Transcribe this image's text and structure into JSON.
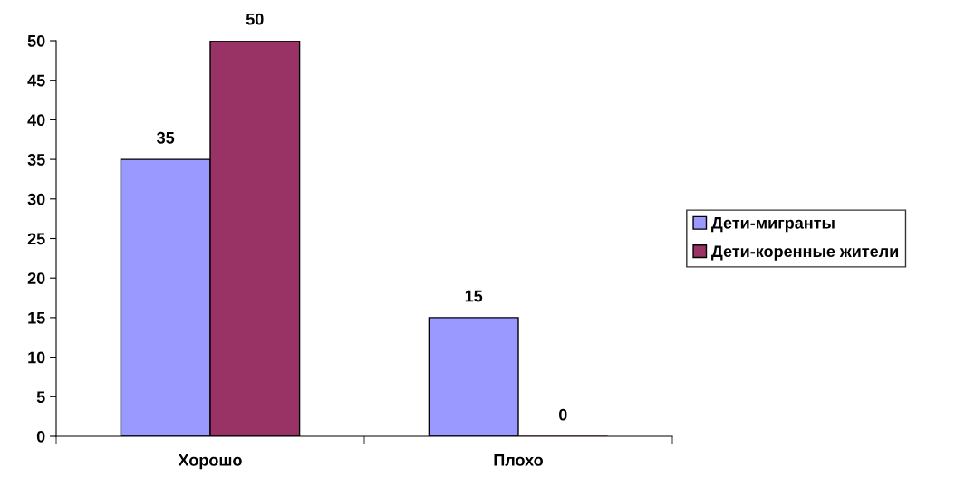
{
  "chart_data": {
    "type": "bar",
    "categories": [
      "Хорошо",
      "Плохо"
    ],
    "series": [
      {
        "name": "Дети-мигранты",
        "color": "#9999ff",
        "values": [
          35,
          15
        ]
      },
      {
        "name": "Дети-коренные жители",
        "color": "#993366",
        "values": [
          50,
          0
        ]
      }
    ],
    "ylim": [
      0,
      50
    ],
    "yticks": [
      0,
      5,
      10,
      15,
      20,
      25,
      30,
      35,
      40,
      45,
      50
    ],
    "data_labels": true,
    "legend": "right",
    "grid": false
  }
}
